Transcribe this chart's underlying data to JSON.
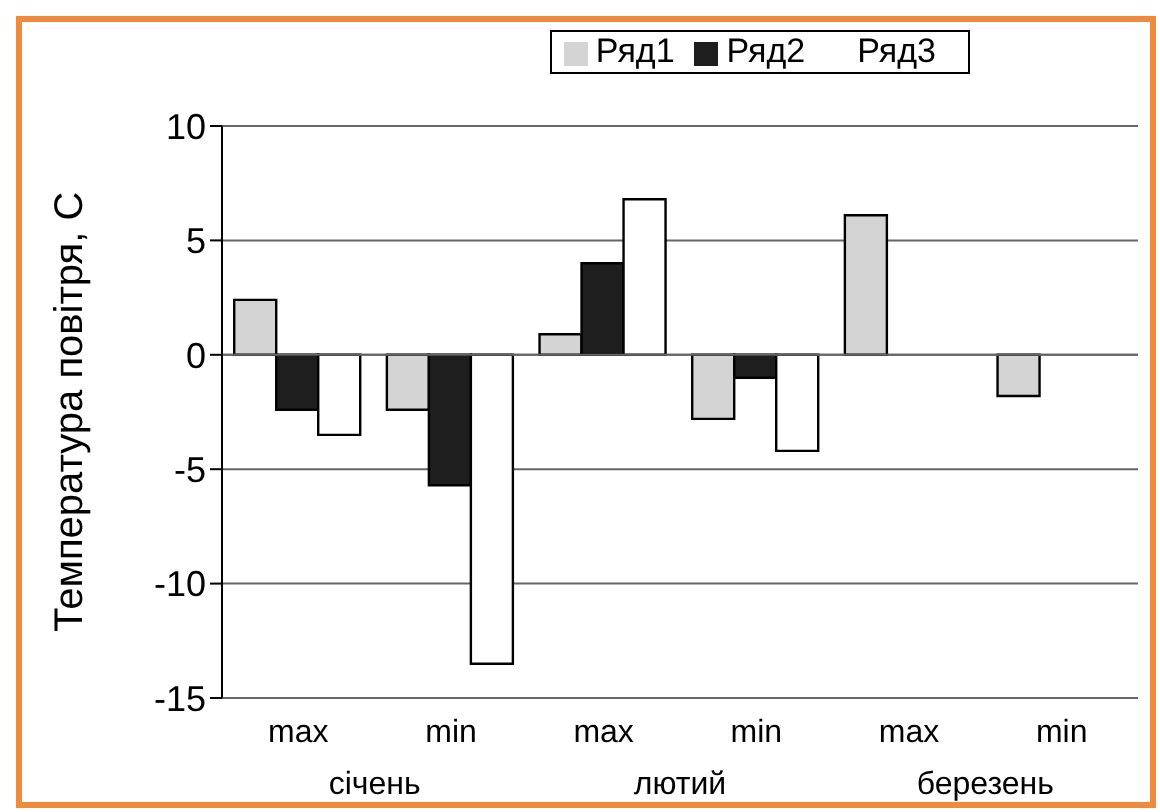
{
  "chart_data": {
    "type": "bar",
    "ylabel": "Температура повітря, С",
    "categories": [
      "max",
      "min",
      "max",
      "min",
      "max",
      "min"
    ],
    "series": [
      {
        "name": "Ряд1",
        "color": "#d4d4d4",
        "values": [
          2.4,
          -2.4,
          0.9,
          -2.8,
          6.1,
          -1.8
        ]
      },
      {
        "name": "Ряд2",
        "color": "#1e1e1e",
        "values": [
          -2.4,
          -5.7,
          4.0,
          -1.0,
          null,
          null
        ]
      },
      {
        "name": "Ряд3",
        "color": "#ffffff",
        "values": [
          -3.5,
          -13.5,
          6.8,
          -4.2,
          null,
          null
        ]
      }
    ],
    "annotations": [
      "січень",
      "лютий",
      "березень"
    ],
    "ylim": [
      -15,
      10
    ],
    "yticks": [
      -15,
      -10,
      -5,
      0,
      5,
      10
    ],
    "grid": "y",
    "legend": "top"
  }
}
